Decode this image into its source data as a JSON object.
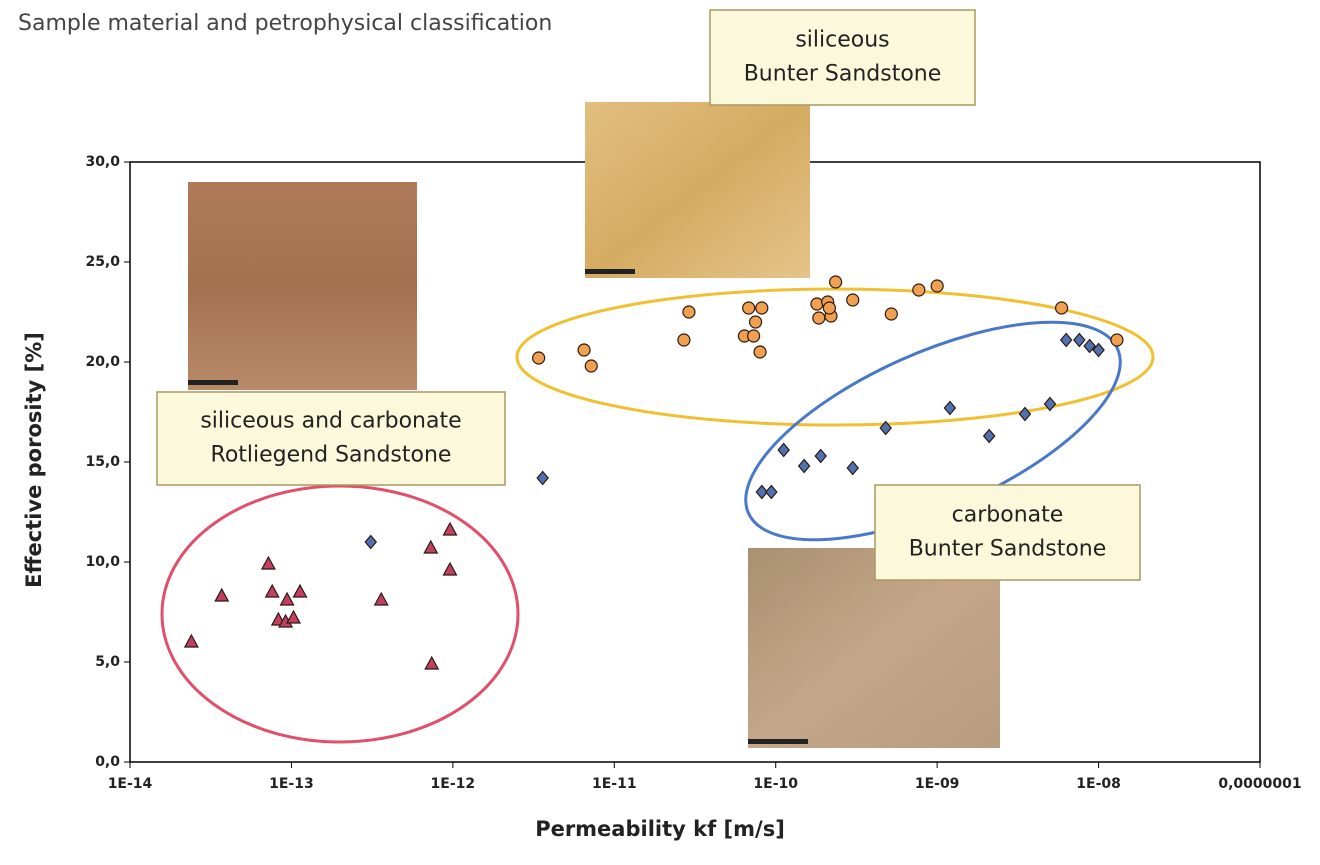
{
  "chart_data": {
    "type": "scatter",
    "title": "Sample material and petrophysical classification",
    "x_label": "Permeability kf [m/s]",
    "y_label": "Effective porosity [%]",
    "x_log": true,
    "xlim": [
      1e-14,
      1e-07
    ],
    "xticks": [
      {
        "value": 1e-14,
        "label": "1E-14"
      },
      {
        "value": 1e-13,
        "label": "1E-13"
      },
      {
        "value": 1e-12,
        "label": "1E-12"
      },
      {
        "value": 1e-11,
        "label": "1E-11"
      },
      {
        "value": 1e-10,
        "label": "1E-10"
      },
      {
        "value": 1e-09,
        "label": "1E-09"
      },
      {
        "value": 1e-08,
        "label": "1E-08"
      },
      {
        "value": 1e-07,
        "label": "0,0000001"
      }
    ],
    "ylim": [
      0,
      30
    ],
    "yticks": [
      {
        "value": 0,
        "label": "0,0"
      },
      {
        "value": 5,
        "label": "5,0"
      },
      {
        "value": 10,
        "label": "10,0"
      },
      {
        "value": 15,
        "label": "15,0"
      },
      {
        "value": 20,
        "label": "20,0"
      },
      {
        "value": 25,
        "label": "25,0"
      },
      {
        "value": 30,
        "label": "30,0"
      }
    ],
    "series": [
      {
        "marker": "triangle",
        "color": "#c2405f",
        "x": [
          2.4e-14,
          3.7e-14,
          7.2e-14,
          7.6e-14,
          8.3e-14,
          9.4e-14,
          9.2e-14,
          1.03e-13,
          1.13e-13,
          3.6e-13,
          7.3e-13,
          7.4e-13,
          9.6e-13,
          9.6e-13
        ],
        "values": [
          6.0,
          8.3,
          9.9,
          8.5,
          7.1,
          8.1,
          7.0,
          7.2,
          8.5,
          8.1,
          10.7,
          4.9,
          11.6,
          9.6
        ]
      },
      {
        "marker": "circle",
        "color": "#f0a050",
        "x": [
          3.4e-12,
          6.5e-12,
          7.2e-12,
          2.7e-11,
          2.9e-11,
          6.4e-11,
          7.3e-11,
          8e-11,
          6.8e-11,
          7.5e-11,
          8.2e-11,
          1.8e-10,
          1.85e-10,
          2.1e-10,
          2.2e-10,
          2.15e-10,
          2.35e-10,
          3e-10,
          5.2e-10,
          7.7e-10,
          1e-09,
          5.9e-09,
          1.3e-08
        ],
        "values": [
          20.2,
          20.6,
          19.8,
          21.1,
          22.5,
          21.3,
          21.3,
          20.5,
          22.7,
          22.0,
          22.7,
          22.9,
          22.2,
          23.0,
          22.3,
          22.7,
          24.0,
          23.1,
          22.4,
          23.6,
          23.8,
          22.7,
          21.1
        ]
      },
      {
        "marker": "diamond",
        "color": "#5070b0",
        "x": [
          3.1e-13,
          3.6e-12,
          8.2e-11,
          9.4e-11,
          1.12e-10,
          1.5e-10,
          1.9e-10,
          3e-10,
          4.8e-10,
          1.2e-09,
          2.1e-09,
          3.5e-09,
          5e-09,
          6.3e-09,
          7.6e-09,
          8.8e-09,
          1e-08
        ],
        "values": [
          11.0,
          14.2,
          13.5,
          13.5,
          15.6,
          14.8,
          15.3,
          14.7,
          16.7,
          17.7,
          16.3,
          17.4,
          17.9,
          21.1,
          21.1,
          20.8,
          20.6
        ]
      }
    ],
    "annotations": [
      {
        "lines": [
          "siliceous",
          "Bunter Sandstone"
        ]
      },
      {
        "lines": [
          "siliceous and carbonate",
          "Rotliegend Sandstone"
        ]
      },
      {
        "lines": [
          "carbonate",
          "Bunter Sandstone"
        ]
      }
    ]
  }
}
